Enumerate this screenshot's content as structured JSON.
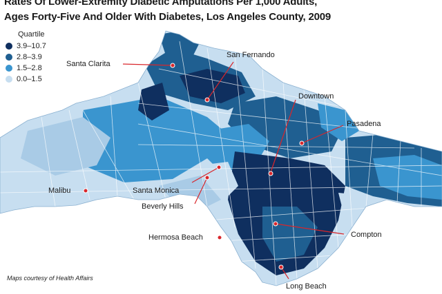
{
  "title": {
    "line1": "Rates Of Lower-Extremity Diabetic Amputations Per 1,000 Adults,",
    "line2": "Ages Forty-Five And Older With Diabetes, Los Angeles County, 2009"
  },
  "legend": {
    "title": "Quartile",
    "items": [
      {
        "label": "3.9–10.7",
        "color": "#0f2f5f"
      },
      {
        "label": "2.8–3.9",
        "color": "#1f5f91"
      },
      {
        "label": "1.5–2.8",
        "color": "#3a95cf"
      },
      {
        "label": "0.0–1.5",
        "color": "#c7def0"
      }
    ]
  },
  "places": {
    "san_fernando": "San Fernando",
    "santa_clarita": "Santa Clarita",
    "downtown": "Downtown",
    "pasadena": "Pasadena",
    "malibu": "Malibu",
    "santa_monica": "Santa Monica",
    "beverly_hills": "Beverly Hills",
    "compton": "Compton",
    "hermosa_beach": "Hermosa Beach",
    "long_beach": "Long Beach"
  },
  "credit": "Maps courtesy of Health Affairs",
  "marker_color": "#d9262b"
}
